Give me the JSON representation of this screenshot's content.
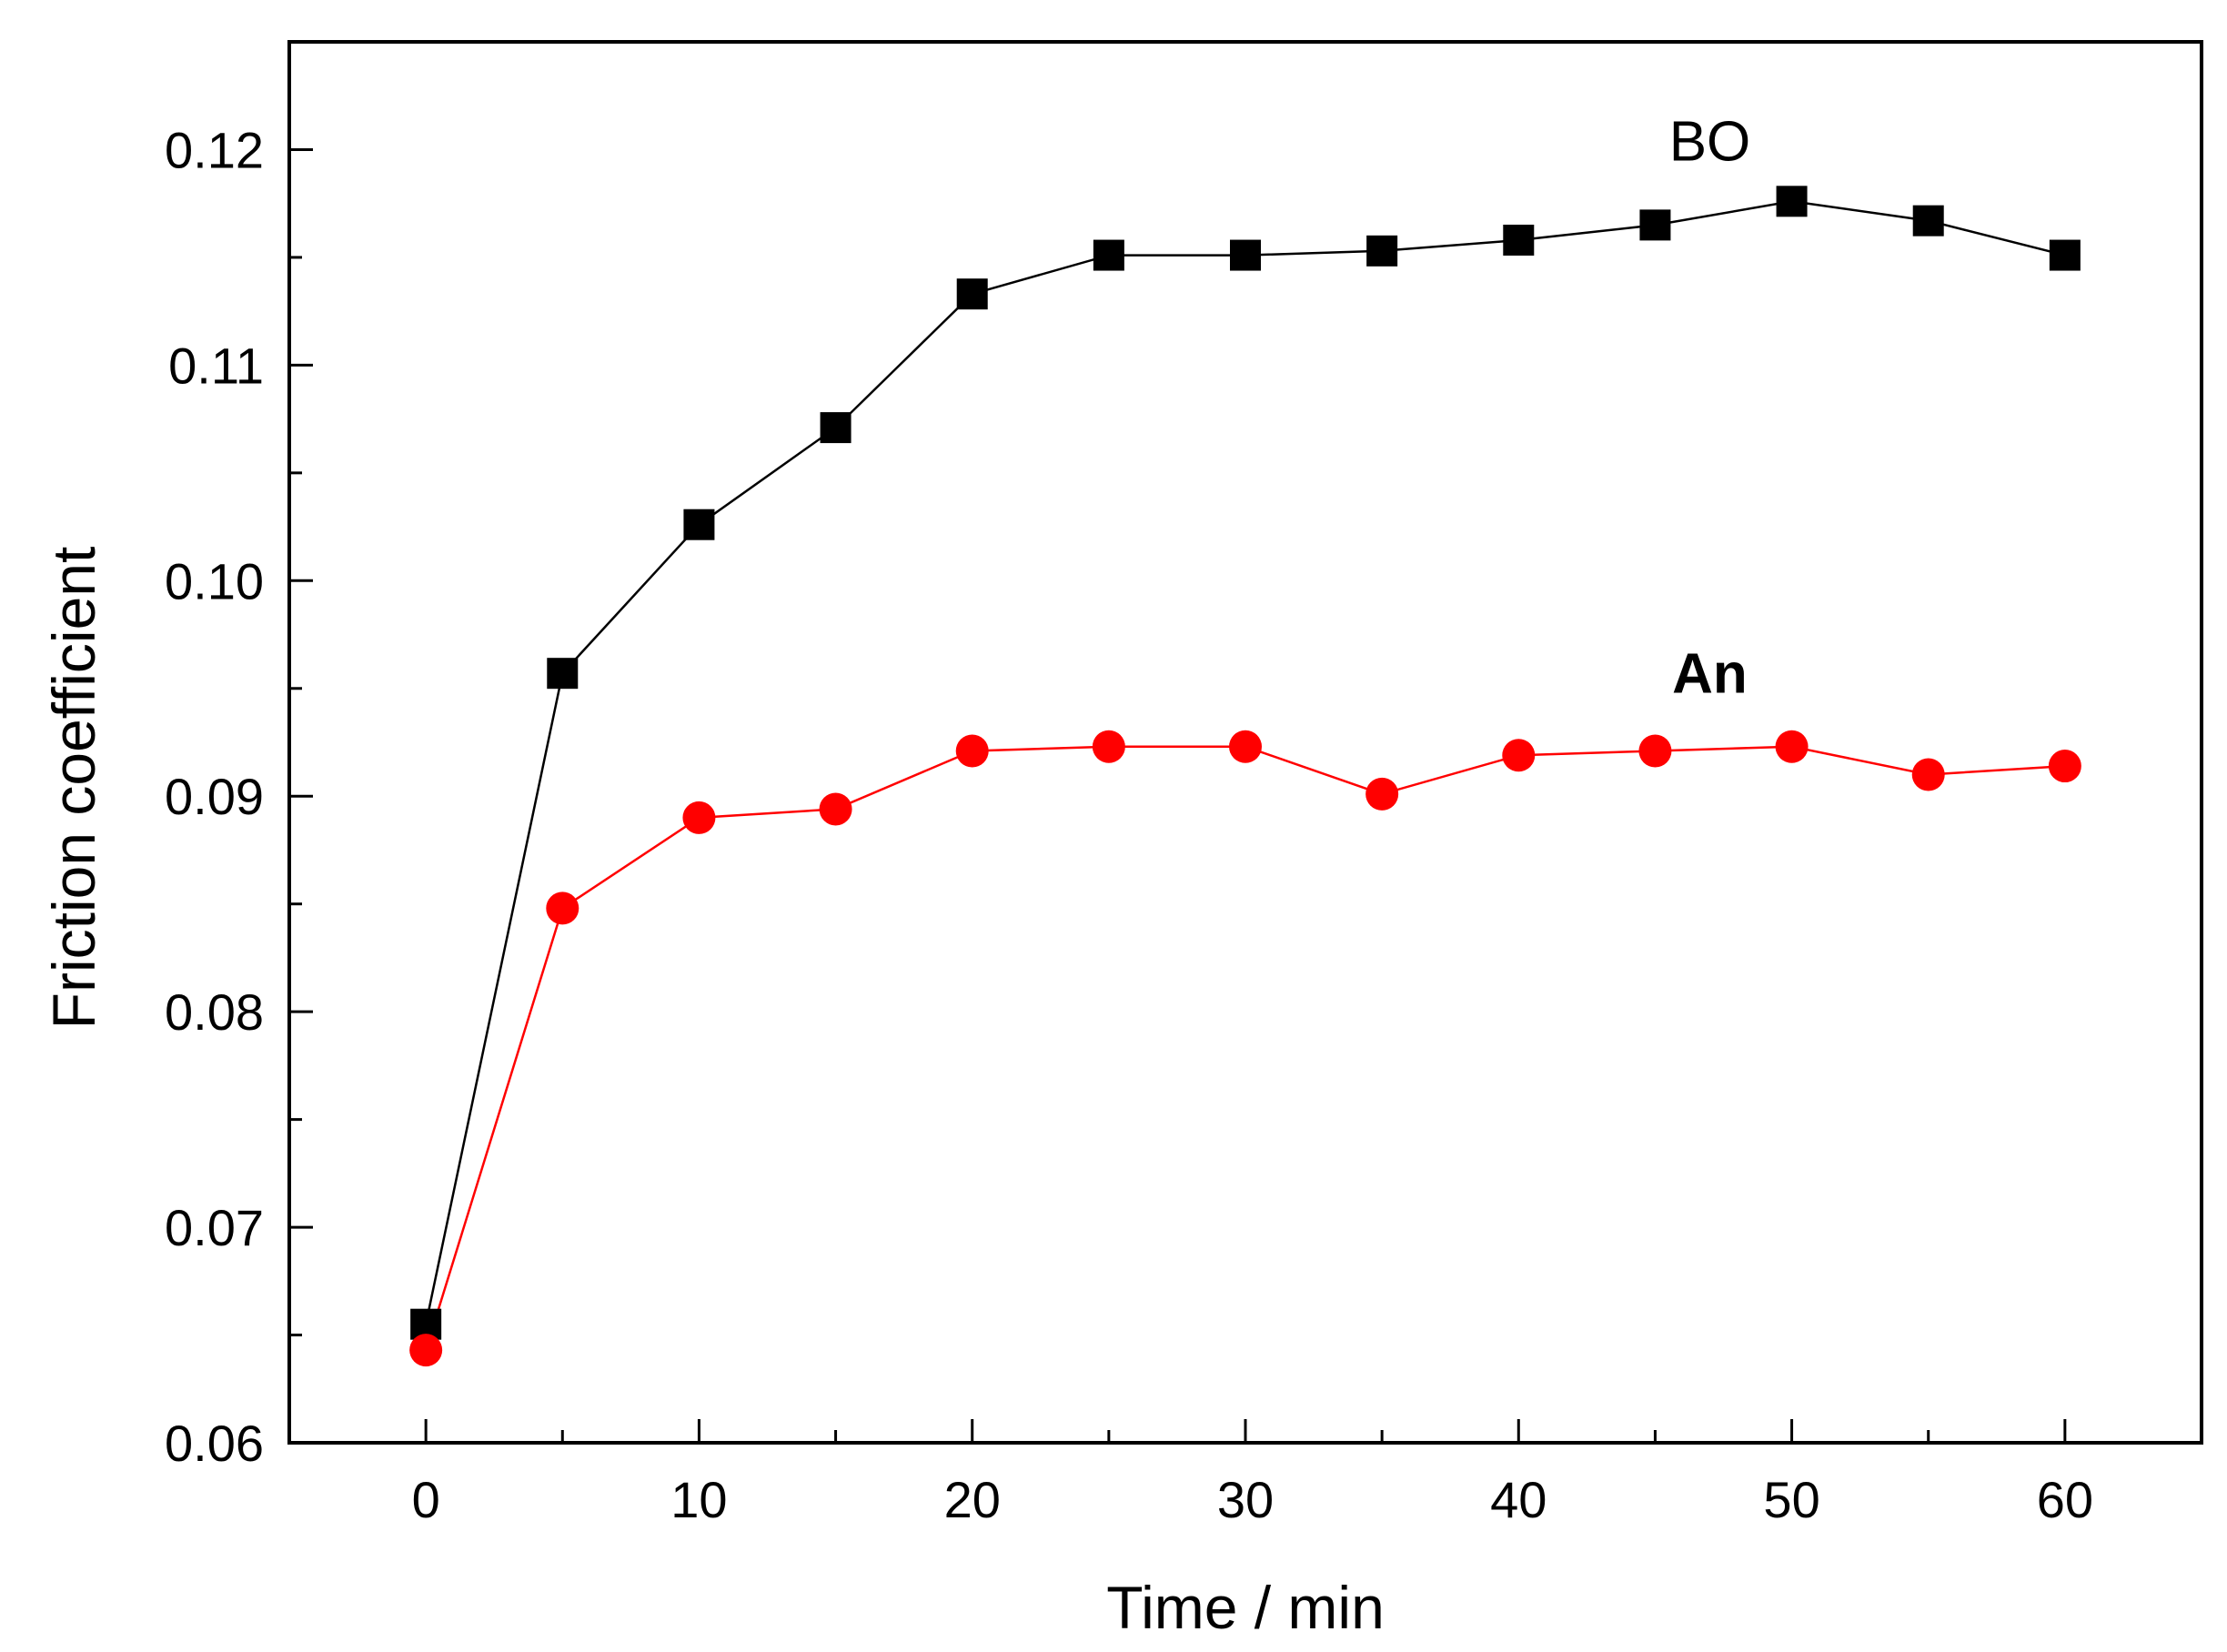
{
  "chart_data": {
    "type": "line",
    "title": "",
    "xlabel": "Time / min",
    "ylabel": "Friction coefficient",
    "xlim": [
      -5,
      65
    ],
    "ylim": [
      0.06,
      0.125
    ],
    "xticks": [
      0,
      10,
      20,
      30,
      40,
      50,
      60
    ],
    "xtick_labels": [
      "0",
      "10",
      "20",
      "30",
      "40",
      "50",
      "60"
    ],
    "yticks": [
      0.06,
      0.07,
      0.08,
      0.09,
      0.1,
      0.11,
      0.12
    ],
    "ytick_labels": [
      "0.06",
      "0.07",
      "0.08",
      "0.09",
      "0.10",
      "0.11",
      "0.12"
    ],
    "x": [
      0,
      5,
      10,
      15,
      20,
      25,
      30,
      35,
      40,
      45,
      50,
      55,
      60
    ],
    "grid": false,
    "series": [
      {
        "name": "BO",
        "label_bold": false,
        "color": "#000000",
        "marker": "square",
        "values": [
          0.0655,
          0.0957,
          0.1026,
          0.1071,
          0.1133,
          0.1151,
          0.1151,
          0.1153,
          0.1158,
          0.1165,
          0.1176,
          0.1167,
          0.1151
        ],
        "label_position": {
          "x": 47,
          "y": 0.1195
        }
      },
      {
        "name": "An",
        "label_bold": true,
        "color": "#ff0000",
        "marker": "circle",
        "values": [
          0.0643,
          0.0848,
          0.089,
          0.0894,
          0.0921,
          0.0923,
          0.0923,
          0.0901,
          0.0919,
          0.0921,
          0.0923,
          0.091,
          0.0914
        ],
        "label_position": {
          "x": 47,
          "y": 0.0948
        }
      }
    ]
  }
}
